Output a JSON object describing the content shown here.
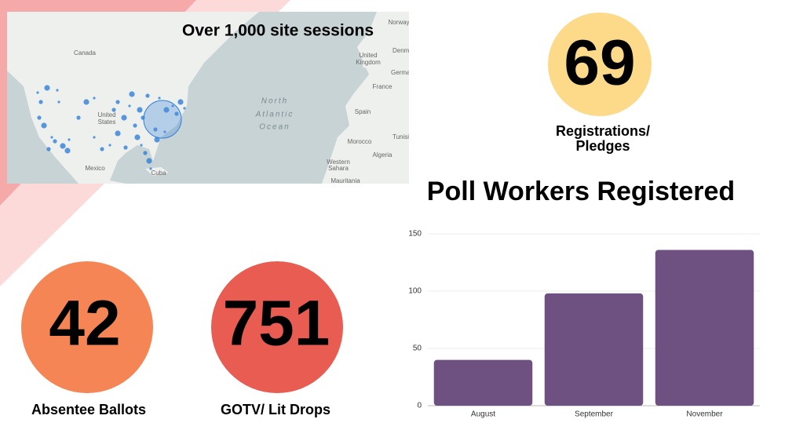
{
  "map": {
    "title": "Over 1,000 site sessions",
    "labels": [
      "Canada",
      "United",
      "States",
      "Mexico",
      "Cuba",
      "North",
      "Atlantic",
      "Ocean",
      "Norway",
      "United",
      "Kingdom",
      "Denmark",
      "Germany",
      "France",
      "Spain",
      "Morocco",
      "Algeria",
      "Tunisia",
      "Western",
      "Sahara",
      "Mauritania"
    ]
  },
  "stats": [
    {
      "value": 69,
      "label": [
        "Registrations/",
        "Pledges"
      ]
    },
    {
      "value": 42,
      "label": [
        "Absentee Ballots"
      ]
    },
    {
      "value": 751,
      "label": [
        "GOTV/ Lit Drops"
      ]
    }
  ],
  "chart_data": {
    "type": "bar",
    "title": "Poll Workers Registered",
    "categories": [
      "August",
      "September",
      "November"
    ],
    "values": [
      40,
      98,
      136
    ],
    "color": "#6e5180",
    "ylim": [
      0,
      150
    ],
    "yticks": [
      0,
      50,
      100,
      150
    ],
    "grid": true
  }
}
